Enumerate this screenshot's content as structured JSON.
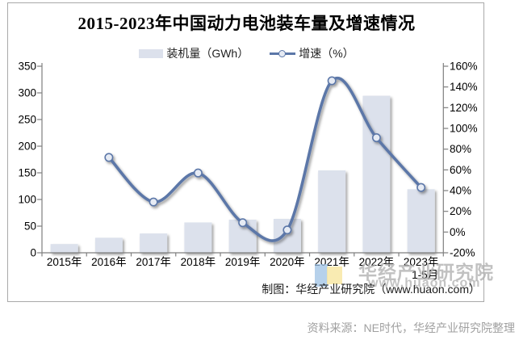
{
  "title": "2015-2023年中国动力电池装车量及增速情况",
  "legend": {
    "bar_label": "装机量（GWh）",
    "line_label": "增速（%）"
  },
  "chart_data": {
    "type": "combo bar+line, dual axis",
    "categories": [
      "2015年",
      "2016年",
      "2017年",
      "2018年",
      "2019年",
      "2020年",
      "2021年",
      "2022年",
      "2023年\n1-5月"
    ],
    "series": [
      {
        "name": "装机量（GWh）",
        "type": "bar",
        "axis": "left",
        "values": [
          16.4,
          28.2,
          36.2,
          56.9,
          62.2,
          63.6,
          154.5,
          294.6,
          119.2
        ]
      },
      {
        "name": "增速（%）",
        "type": "line",
        "axis": "right",
        "smooth": true,
        "values": [
          null,
          72,
          29,
          57,
          9,
          2,
          146,
          91,
          43
        ]
      }
    ],
    "left_axis": {
      "min": 0,
      "max": 350,
      "step": 50,
      "ticks": [
        "0",
        "50",
        "100",
        "150",
        "200",
        "250",
        "300",
        "350"
      ]
    },
    "right_axis": {
      "min": -20,
      "max": 160,
      "step": 20,
      "ticks": [
        "-20%",
        "0%",
        "20%",
        "40%",
        "60%",
        "80%",
        "100%",
        "120%",
        "140%",
        "160%"
      ]
    },
    "grid": false,
    "legend_position": "top-center"
  },
  "watermark": {
    "name": "华经产业研究院",
    "url": "www.huaon.com"
  },
  "credit": "制图：华经产业研究院（www.huaon.com）",
  "source": "资料来源：NE时代，华经产业研究院整理",
  "colors": {
    "bar": "#dce1ec",
    "line": "#5b77a8",
    "marker_fill": "#e6ebf4",
    "axis": "#7f7f7f",
    "text": "#000000",
    "frame_border": "#a9a9a9",
    "watermark": "#b2b2b2",
    "source_text": "#a0a0a0",
    "logo_blue": "#9ec1e4",
    "logo_yellow": "#f8e7a4"
  }
}
